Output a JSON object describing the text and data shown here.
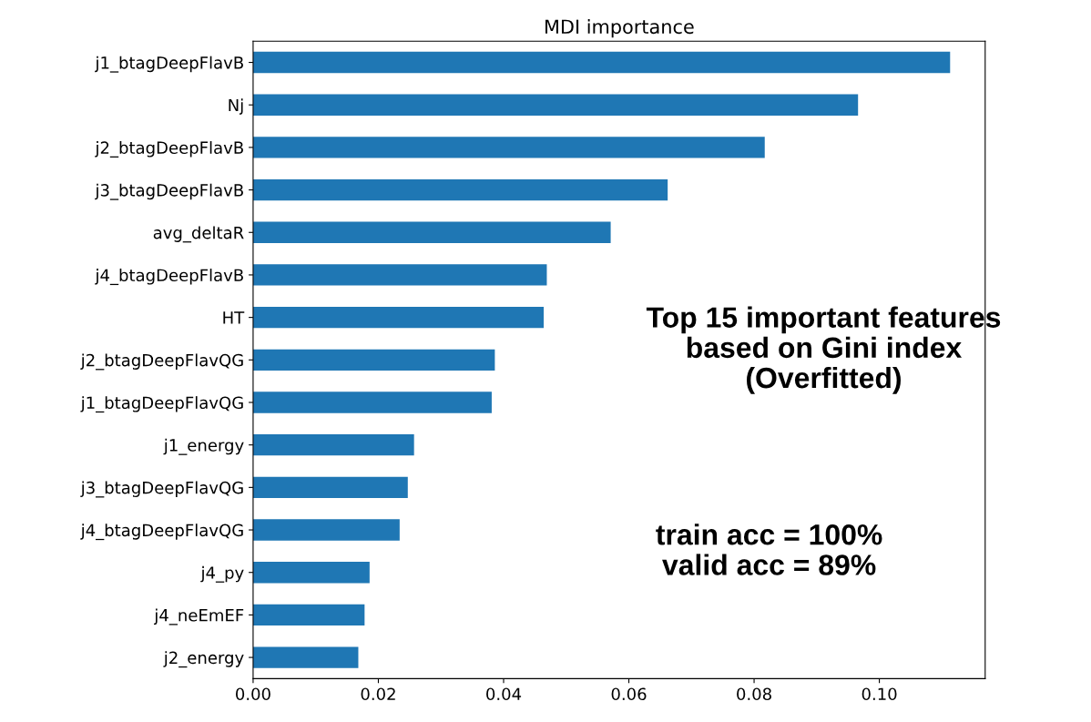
{
  "chart_data": {
    "type": "bar",
    "orientation": "horizontal",
    "title": "MDI importance",
    "categories": [
      "j1_btagDeepFlavB",
      "Nj",
      "j2_btagDeepFlavB",
      "j3_btagDeepFlavB",
      "avg_deltaR",
      "j4_btagDeepFlavB",
      "HT",
      "j2_btagDeepFlavQG",
      "j1_btagDeepFlavQG",
      "j1_energy",
      "j3_btagDeepFlavQG",
      "j4_btagDeepFlavQG",
      "j4_py",
      "j4_neEmEF",
      "j2_energy"
    ],
    "values": [
      0.1113,
      0.0966,
      0.0817,
      0.0662,
      0.0571,
      0.0469,
      0.0464,
      0.0386,
      0.0381,
      0.0257,
      0.0247,
      0.0234,
      0.0186,
      0.0178,
      0.0168
    ],
    "color": "#1f77b4",
    "xlim": [
      0,
      0.1169
    ],
    "xticks": [
      {
        "value": 0,
        "label": "0.00"
      },
      {
        "value": 0.02,
        "label": "0.02"
      },
      {
        "value": 0.04,
        "label": "0.04"
      },
      {
        "value": 0.06,
        "label": "0.06"
      },
      {
        "value": 0.08,
        "label": "0.08"
      },
      {
        "value": 0.1,
        "label": "0.10"
      }
    ],
    "grid": false,
    "legend": false,
    "annotations": [
      "Top 15 important features\nbased on Gini index\n(Overfitted)",
      "train acc = 100%\nvalid acc = 89%"
    ]
  }
}
